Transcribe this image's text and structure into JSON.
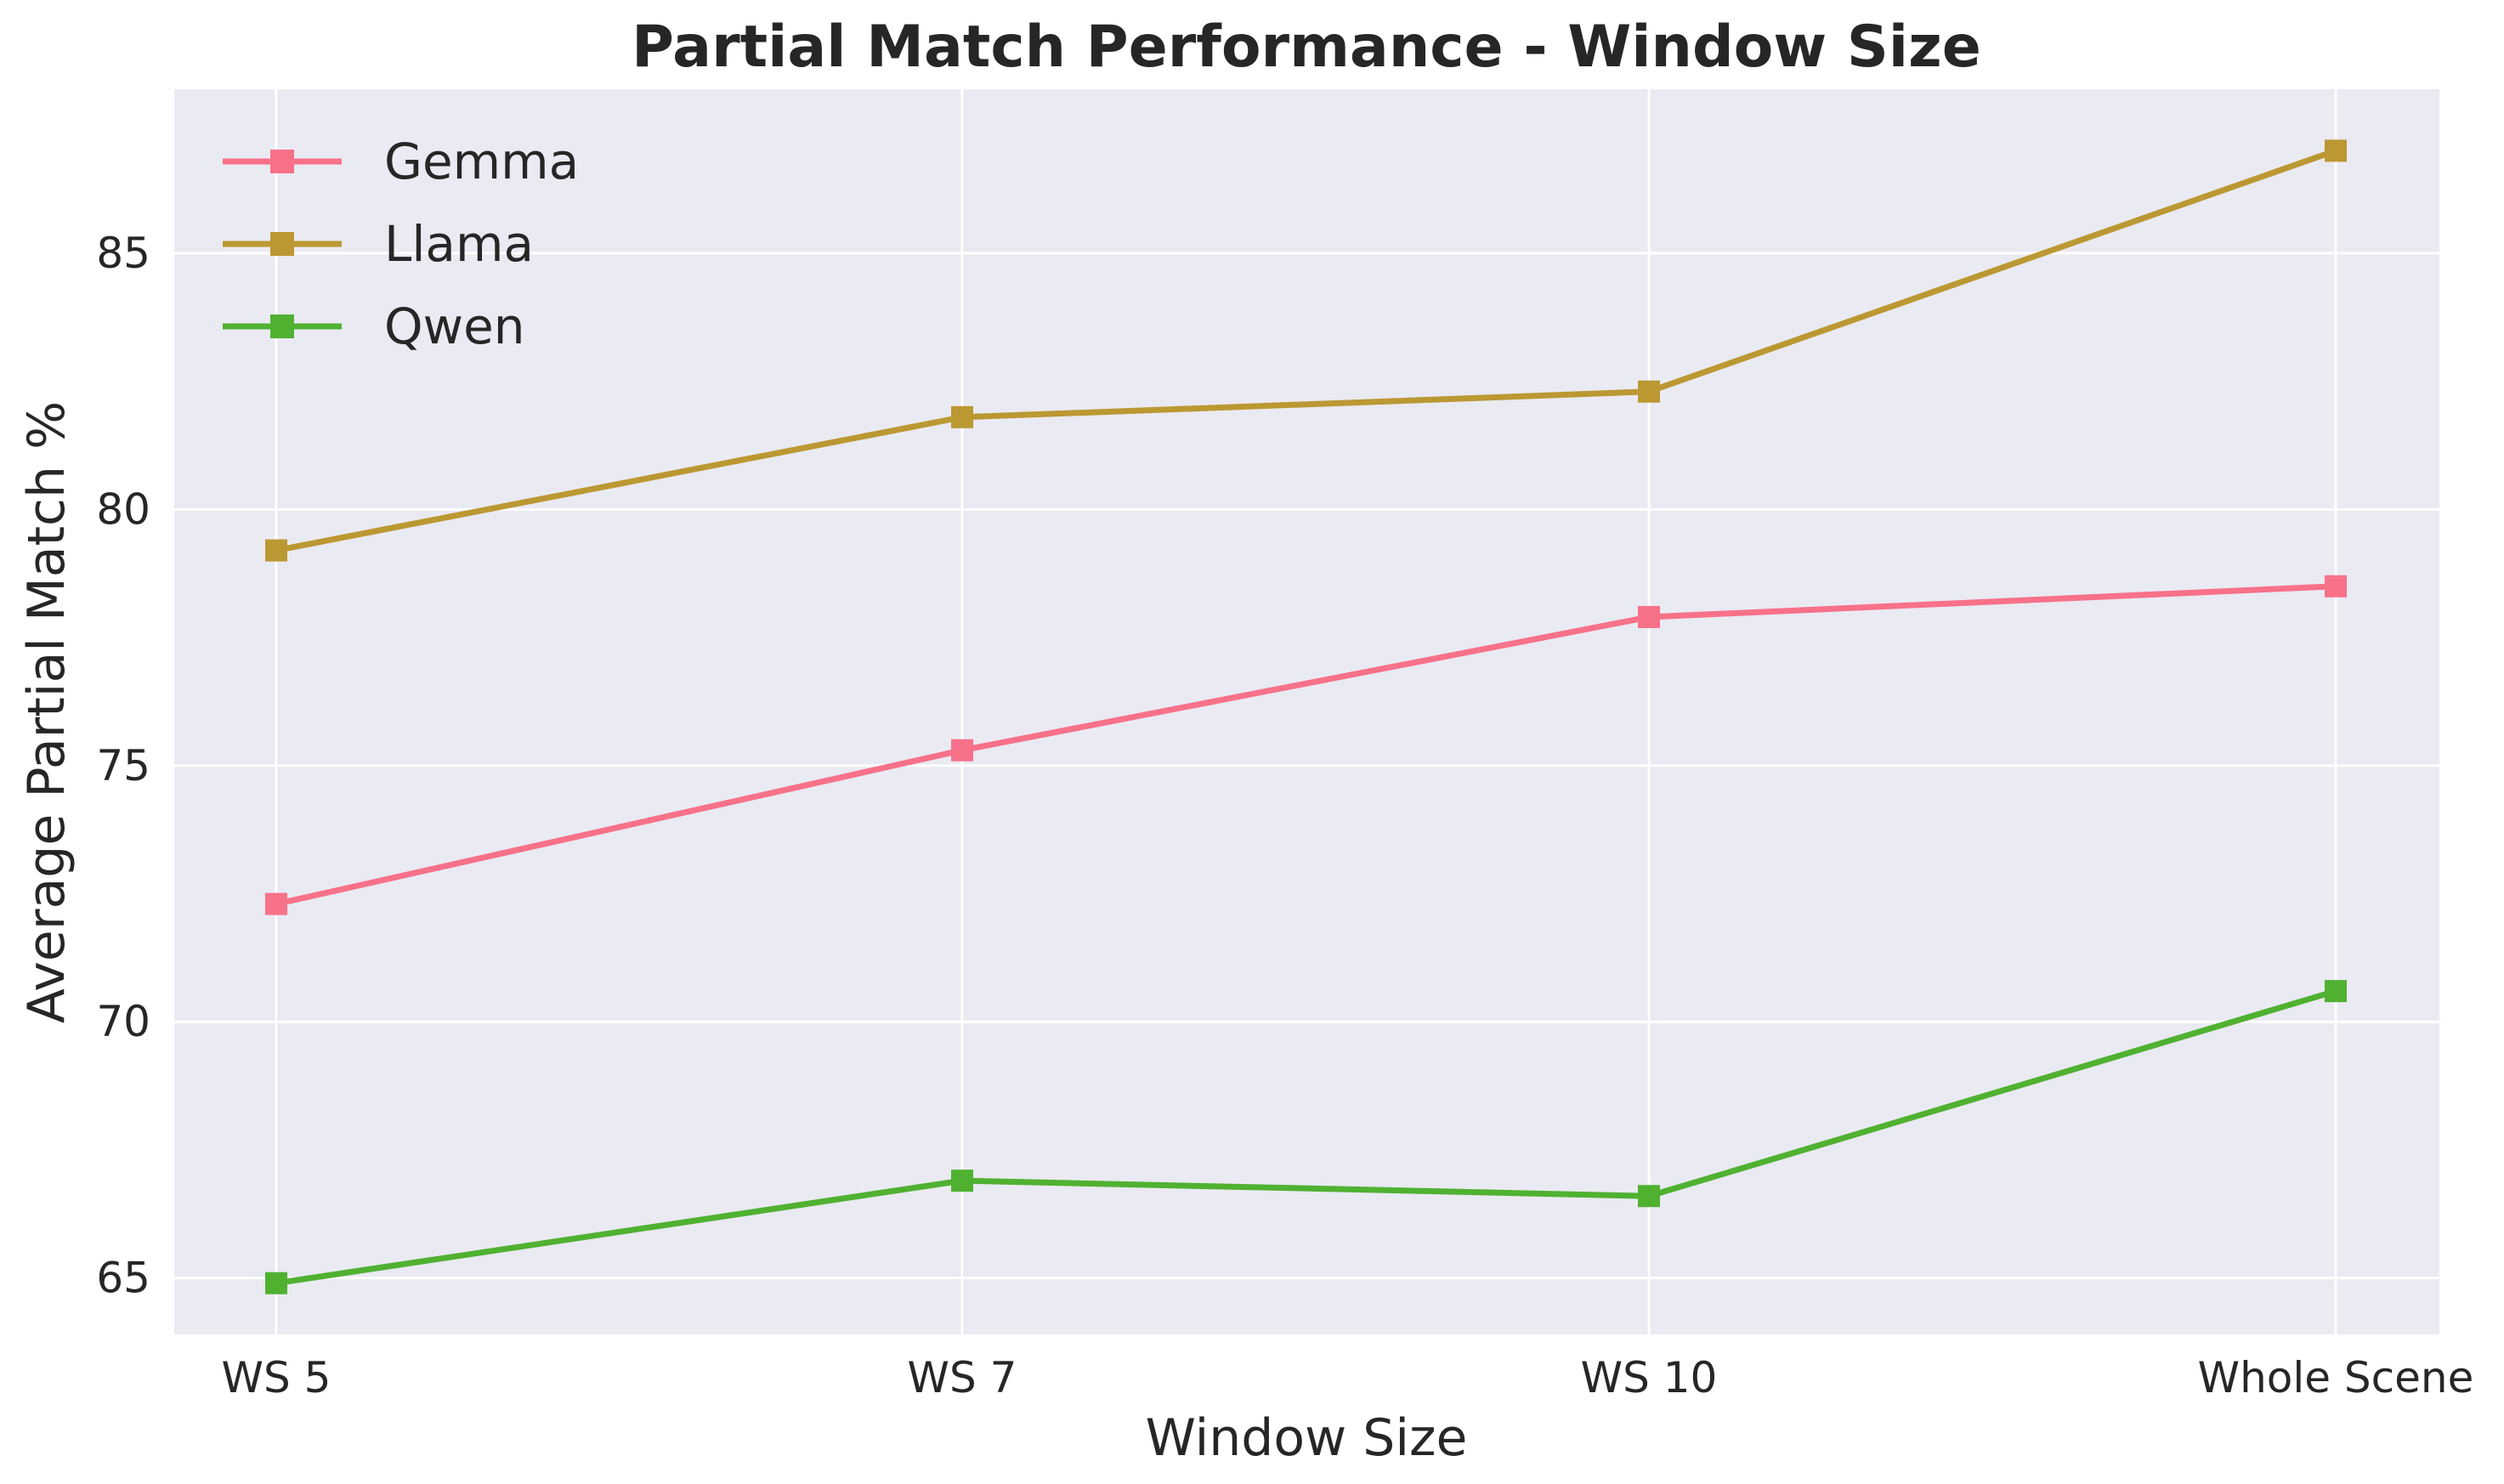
{
  "chart_data": {
    "type": "line",
    "title": "Partial Match Performance - Window Size",
    "xlabel": "Window Size",
    "ylabel": "Average Partial Match %",
    "categories": [
      "WS 5",
      "WS 7",
      "WS 10",
      "Whole Scene"
    ],
    "ylim": [
      63.9,
      88.2
    ],
    "yticks": [
      65,
      70,
      75,
      80,
      85
    ],
    "grid": true,
    "legend_position": "top-left",
    "marker": "square",
    "series": [
      {
        "name": "Gemma",
        "color": "#f77189",
        "values": [
          72.3,
          75.3,
          77.9,
          78.5
        ]
      },
      {
        "name": "Llama",
        "color": "#bb9832",
        "values": [
          79.2,
          81.8,
          82.3,
          87.0
        ]
      },
      {
        "name": "Qwen",
        "color": "#50b131",
        "values": [
          64.9,
          66.9,
          66.6,
          70.6
        ]
      }
    ]
  }
}
